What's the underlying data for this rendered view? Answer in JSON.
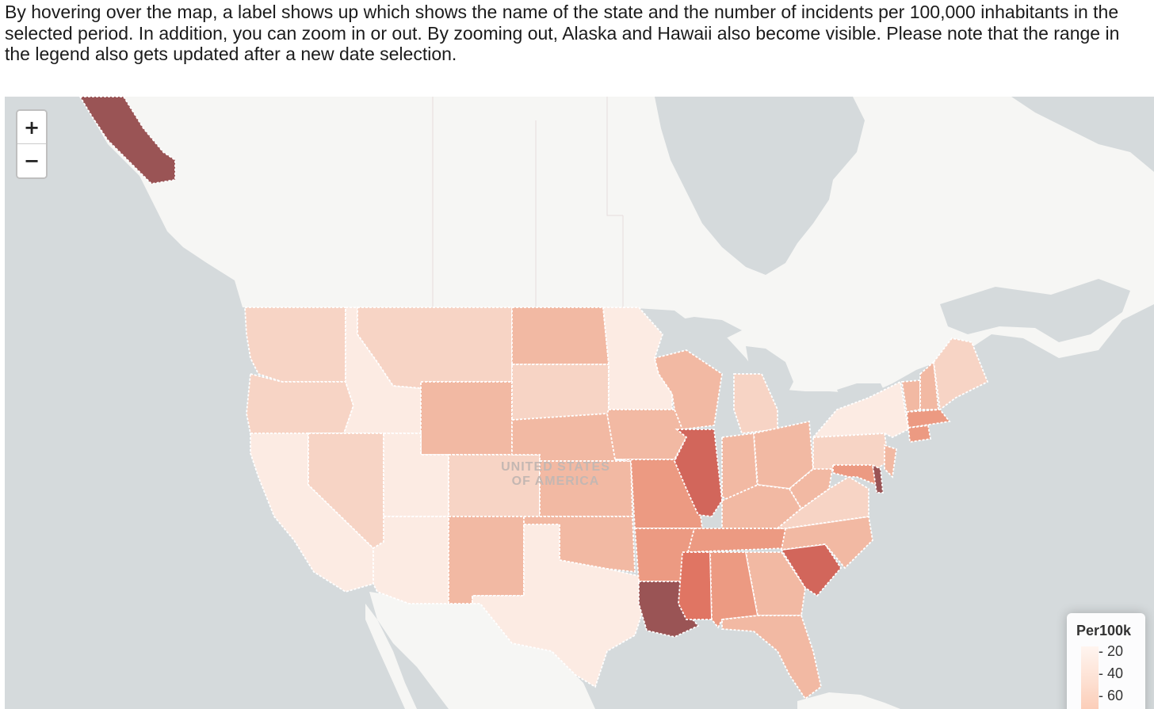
{
  "intro_text": "By hovering over the map, a label shows up which shows the name of the state and the number of incidents per 100,000 inhabitants in the selected period. In addition, you can zoom in or out. By zooming out, Alaska and Hawaii also become visible. Please note that the range in the legend also gets updated after a new date selection.",
  "zoom": {
    "in_label": "+",
    "out_label": "−"
  },
  "map_label": {
    "line1": "UNITED STATES",
    "line2": "OF AMERICA"
  },
  "legend": {
    "title": "Per100k",
    "ticks": [
      "20",
      "40",
      "60"
    ]
  },
  "colors": {
    "water": "#d5dadc",
    "land": "#f6f6f4",
    "scale": [
      "#fcebe3",
      "#f7d4c5",
      "#f2b9a3",
      "#ec9a82",
      "#e07563",
      "#d2665b",
      "#9a5455"
    ]
  },
  "states": [
    {
      "name": "Washington",
      "shade": 1
    },
    {
      "name": "Oregon",
      "shade": 1
    },
    {
      "name": "California",
      "shade": 0
    },
    {
      "name": "Idaho",
      "shade": 0
    },
    {
      "name": "Nevada",
      "shade": 1
    },
    {
      "name": "Montana",
      "shade": 1
    },
    {
      "name": "Wyoming",
      "shade": 2
    },
    {
      "name": "Utah",
      "shade": 0
    },
    {
      "name": "Arizona",
      "shade": 0
    },
    {
      "name": "Colorado",
      "shade": 1
    },
    {
      "name": "New Mexico",
      "shade": 2
    },
    {
      "name": "North Dakota",
      "shade": 2
    },
    {
      "name": "South Dakota",
      "shade": 1
    },
    {
      "name": "Nebraska",
      "shade": 2
    },
    {
      "name": "Kansas",
      "shade": 2
    },
    {
      "name": "Oklahoma",
      "shade": 2
    },
    {
      "name": "Texas",
      "shade": 0
    },
    {
      "name": "Minnesota",
      "shade": 0
    },
    {
      "name": "Iowa",
      "shade": 2
    },
    {
      "name": "Missouri",
      "shade": 3
    },
    {
      "name": "Arkansas",
      "shade": 3
    },
    {
      "name": "Louisiana",
      "shade": 6
    },
    {
      "name": "Wisconsin",
      "shade": 2
    },
    {
      "name": "Illinois",
      "shade": 5
    },
    {
      "name": "Michigan",
      "shade": 1
    },
    {
      "name": "Indiana",
      "shade": 2
    },
    {
      "name": "Ohio",
      "shade": 2
    },
    {
      "name": "Kentucky",
      "shade": 2
    },
    {
      "name": "Tennessee",
      "shade": 3
    },
    {
      "name": "Mississippi",
      "shade": 4
    },
    {
      "name": "Alabama",
      "shade": 3
    },
    {
      "name": "Georgia",
      "shade": 2
    },
    {
      "name": "Florida",
      "shade": 2
    },
    {
      "name": "South Carolina",
      "shade": 5
    },
    {
      "name": "North Carolina",
      "shade": 2
    },
    {
      "name": "Virginia",
      "shade": 1
    },
    {
      "name": "West Virginia",
      "shade": 2
    },
    {
      "name": "Pennsylvania",
      "shade": 1
    },
    {
      "name": "New York",
      "shade": 0
    },
    {
      "name": "Maryland",
      "shade": 3
    },
    {
      "name": "Delaware",
      "shade": 6
    },
    {
      "name": "New Jersey",
      "shade": 2
    },
    {
      "name": "Vermont",
      "shade": 2
    },
    {
      "name": "New Hampshire",
      "shade": 2
    },
    {
      "name": "Maine",
      "shade": 1
    },
    {
      "name": "Massachusetts",
      "shade": 3
    },
    {
      "name": "Connecticut",
      "shade": 3
    },
    {
      "name": "Alaska",
      "shade": 6
    }
  ]
}
